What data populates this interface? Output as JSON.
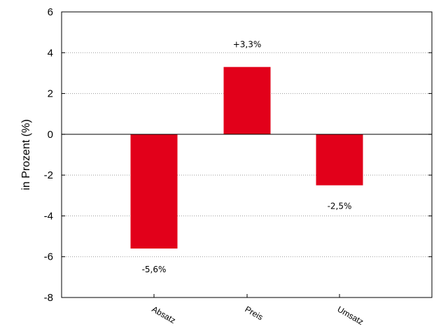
{
  "chart_data": {
    "type": "bar",
    "categories": [
      "Absatz",
      "Preis",
      "Umsatz"
    ],
    "values": [
      -5.6,
      3.3,
      -2.5
    ],
    "data_labels": [
      "-5,6%",
      "+3,3%",
      "-2,5%"
    ],
    "ylabel": "in Prozent (%)",
    "xlabel": "",
    "ylim": [
      -8,
      6
    ],
    "yticks": [
      6,
      4,
      2,
      0,
      -2,
      -4,
      -6,
      -8
    ],
    "ytick_labels": [
      "6",
      "4",
      "2",
      "0",
      "-2",
      "-4",
      "-6",
      "-8"
    ],
    "grid": "horizontal-dotted",
    "bar_color": "#e2001a"
  }
}
